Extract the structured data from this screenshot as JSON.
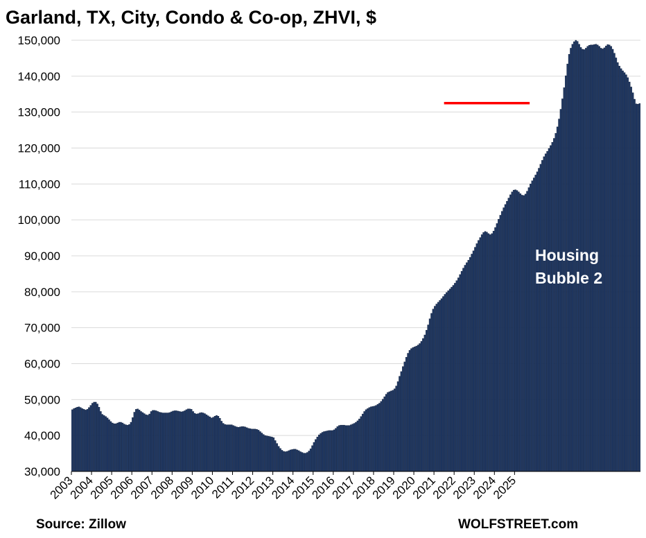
{
  "chart_data": {
    "type": "bar",
    "title": "Garland, TX, City, Condo & Co-op, ZHVI, $",
    "xlabel": "",
    "ylabel": "",
    "ylim": [
      30000,
      150000
    ],
    "yticks": [
      "30,000",
      "40,000",
      "50,000",
      "60,000",
      "70,000",
      "80,000",
      "90,000",
      "100,000",
      "110,000",
      "120,000",
      "130,000",
      "140,000",
      "150,000"
    ],
    "years": [
      "2003",
      "2004",
      "2005",
      "2006",
      "2007",
      "2008",
      "2009",
      "2010",
      "2011",
      "2012",
      "2013",
      "2014",
      "2015",
      "2016",
      "2017",
      "2018",
      "2019",
      "2020",
      "2021",
      "2022",
      "2023",
      "2024",
      "2025"
    ],
    "grid": true,
    "legend": "none",
    "bar_color": "#1f3864",
    "reference_line": {
      "value": 132500,
      "color": "#ff0000",
      "from": "2021-07",
      "to": "2025-09"
    },
    "annotation": [
      "Housing",
      "Bubble 2"
    ],
    "frequency": "monthly",
    "start": "2003-01",
    "values": [
      47200,
      47500,
      47700,
      47900,
      48000,
      47800,
      47500,
      47300,
      47100,
      47300,
      47800,
      48400,
      49000,
      49300,
      49300,
      48800,
      47900,
      46700,
      45900,
      45600,
      45300,
      44900,
      44400,
      43900,
      43500,
      43300,
      43300,
      43500,
      43700,
      43700,
      43500,
      43200,
      43000,
      42900,
      43100,
      43700,
      45000,
      46500,
      47300,
      47400,
      47100,
      46700,
      46400,
      46100,
      45800,
      45700,
      46000,
      46700,
      47000,
      47000,
      46900,
      46700,
      46500,
      46400,
      46300,
      46300,
      46300,
      46300,
      46400,
      46600,
      46800,
      46900,
      46900,
      46800,
      46700,
      46600,
      46700,
      46900,
      47200,
      47400,
      47400,
      47300,
      46700,
      46200,
      46000,
      46100,
      46300,
      46400,
      46300,
      46100,
      45800,
      45500,
      45200,
      44900,
      45100,
      45400,
      45600,
      45400,
      44800,
      44000,
      43400,
      43100,
      43000,
      43000,
      43000,
      43000,
      42800,
      42600,
      42400,
      42300,
      42400,
      42500,
      42500,
      42400,
      42200,
      42000,
      41900,
      41800,
      41800,
      41800,
      41700,
      41500,
      41100,
      40700,
      40300,
      40000,
      39900,
      39800,
      39700,
      39600,
      39400,
      38600,
      37800,
      37000,
      36400,
      35900,
      35600,
      35500,
      35600,
      35800,
      36000,
      36100,
      36200,
      36200,
      36000,
      35800,
      35500,
      35300,
      35100,
      35100,
      35300,
      35700,
      36300,
      37200,
      38100,
      38900,
      39600,
      40200,
      40600,
      40900,
      41100,
      41200,
      41300,
      41400,
      41400,
      41400,
      41600,
      42000,
      42500,
      42800,
      42900,
      42900,
      42900,
      42800,
      42800,
      42800,
      43000,
      43200,
      43400,
      43700,
      44100,
      44600,
      45300,
      46000,
      46700,
      47200,
      47500,
      47800,
      48000,
      48100,
      48200,
      48400,
      48700,
      49000,
      49500,
      50100,
      50800,
      51500,
      52000,
      52200,
      52400,
      52600,
      53000,
      53800,
      55000,
      56500,
      57800,
      59200,
      60500,
      61800,
      62900,
      63700,
      64200,
      64500,
      64700,
      64900,
      65200,
      65600,
      66200,
      67000,
      68000,
      69300,
      70800,
      72500,
      74000,
      75200,
      76000,
      76600,
      77100,
      77600,
      78100,
      78700,
      79300,
      79800,
      80300,
      80800,
      81300,
      81800,
      82400,
      83100,
      83900,
      84800,
      85700,
      86600,
      87400,
      88100,
      88800,
      89600,
      90500,
      91400,
      92400,
      93400,
      94300,
      95100,
      95900,
      96500,
      96800,
      96600,
      96200,
      95900,
      96200,
      96900,
      97900,
      99000,
      100200,
      101300,
      102400,
      103400,
      104300,
      105200,
      106100,
      107000,
      107800,
      108300,
      108400,
      108200,
      107800,
      107300,
      106900,
      106800,
      107200,
      108000,
      109000,
      110000,
      110900,
      111700,
      112500,
      113400,
      114400,
      115500,
      116600,
      117600,
      118400,
      119100,
      119900,
      120700,
      121600,
      122700,
      124100,
      125900,
      128100,
      130800,
      133700,
      136800,
      140100,
      143400,
      146100,
      147800,
      148900,
      149600,
      150000,
      149700,
      148900,
      148000,
      147500,
      147400,
      147800,
      148300,
      148600,
      148700,
      148700,
      148800,
      148900,
      148700,
      148300,
      147800,
      147600,
      147900,
      148400,
      148800,
      148700,
      148300,
      147500,
      146400,
      145100,
      143800,
      142800,
      142100,
      141500,
      141000,
      140400,
      139600,
      138400,
      137000,
      135400,
      133600,
      132300,
      132200,
      132400
    ]
  },
  "footer": {
    "source": "Source: Zillow",
    "brand": "WOLFSTREET.com"
  }
}
